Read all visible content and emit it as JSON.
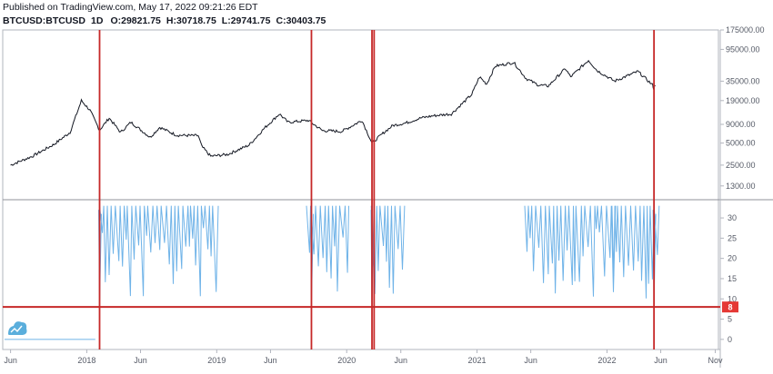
{
  "header": {
    "published": "Published on TradingView.com, May 17, 2022 09:21:26 EDT",
    "symbol": "BTCUSD:BTCUSD",
    "timeframe": "1D",
    "open": "O:29821.75",
    "high": "H:30718.75",
    "low": "L:29741.75",
    "close": "C:30403.75"
  },
  "colors": {
    "price_line": "#131722",
    "indicator_line": "#6fb3e8",
    "vertical_markers": "#c62828",
    "threshold_line": "#c62828",
    "threshold_badge": "#e53935",
    "grid_border": "#b2b5be",
    "axis_text": "#555a66",
    "logo": "#5aaedc"
  },
  "chart_data": [
    {
      "type": "line",
      "title": "",
      "series": [
        {
          "name": "",
          "x": [
            "2017-06-01",
            "2017-08-01",
            "2017-10-01",
            "2017-11-15",
            "2017-12-17",
            "2018-01-10",
            "2018-02-06",
            "2018-03-05",
            "2018-04-06",
            "2018-05-05",
            "2018-06-28",
            "2018-07-25",
            "2018-09-10",
            "2018-11-10",
            "2018-11-20",
            "2018-12-15",
            "2019-02-01",
            "2019-04-02",
            "2019-05-15",
            "2019-06-26",
            "2019-07-20",
            "2019-09-15",
            "2019-10-25",
            "2019-12-18",
            "2020-02-13",
            "2020-03-12",
            "2020-04-15",
            "2020-05-10",
            "2020-06-15",
            "2020-07-27",
            "2020-09-01",
            "2020-10-21",
            "2020-12-17",
            "2021-01-08",
            "2021-01-28",
            "2021-02-21",
            "2021-04-14",
            "2021-05-19",
            "2021-06-22",
            "2021-07-20",
            "2021-09-06",
            "2021-09-21",
            "2021-11-10",
            "2021-12-04",
            "2022-01-22",
            "2022-03-29",
            "2022-05-09",
            "2022-05-12",
            "2022-05-17"
          ],
          "values": [
            2500,
            3300,
            4800,
            7000,
            19000,
            14000,
            7500,
            11000,
            7000,
            9600,
            6000,
            8200,
            6400,
            6300,
            4500,
            3300,
            3500,
            4700,
            8000,
            12500,
            9600,
            10200,
            7400,
            7200,
            10200,
            5000,
            7000,
            8700,
            9400,
            11000,
            11800,
            12500,
            23000,
            40000,
            32000,
            56000,
            63000,
            38000,
            31000,
            30000,
            52000,
            40000,
            67500,
            49000,
            35000,
            47500,
            31000,
            28000,
            30400
          ],
          "source_note": "estimated"
        }
      ],
      "yaxis": {
        "scale": "log",
        "ticks": [
          "175000.00",
          "95000.00",
          "35000.00",
          "19000.00",
          "9000.00",
          "5000.00",
          "2500.00",
          "1300.00"
        ]
      }
    },
    {
      "type": "line",
      "title": "",
      "series": [
        {
          "name": "",
          "values_range": [
            8,
            33
          ],
          "note": "oscillating indicator below price"
        }
      ],
      "yaxis": {
        "ticks": [
          "30",
          "25",
          "20",
          "15",
          "10",
          "5",
          "0"
        ],
        "ylim": [
          -2,
          34
        ]
      },
      "threshold": {
        "value": 8,
        "label": "8"
      }
    }
  ],
  "xaxis": {
    "labels": [
      "Jun",
      "2018",
      "Jun",
      "2019",
      "Jun",
      "2020",
      "Jun",
      "2021",
      "Jun",
      "2022",
      "Jun",
      "Nov"
    ],
    "label_dates": [
      "2017-06-01",
      "2018-01-01",
      "2018-06-01",
      "2019-01-01",
      "2019-06-01",
      "2020-01-01",
      "2020-06-01",
      "2021-01-01",
      "2021-06-01",
      "2022-01-01",
      "2022-06-01",
      "2022-11-01"
    ]
  },
  "vertical_markers": {
    "dates": [
      "2018-02-06",
      "2019-09-24",
      "2020-03-12",
      "2020-03-18",
      "2022-05-13"
    ]
  }
}
